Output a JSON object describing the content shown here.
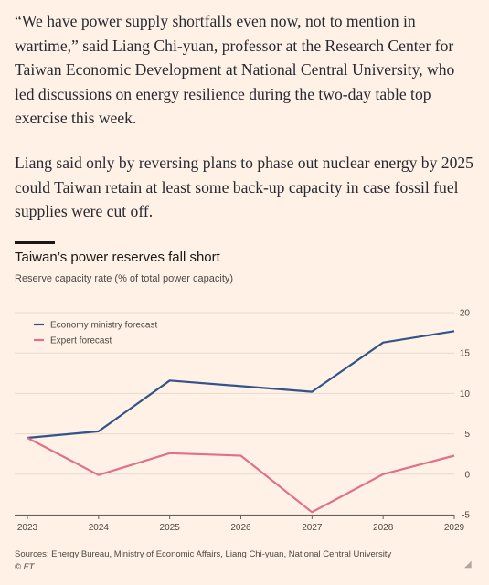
{
  "article": {
    "paragraph_1": "“We have power supply shortfalls even now, not to mention in wartime,” said Liang Chi-yuan, professor at the Research Center for Taiwan Economic Development at National Central University, who led discussions on energy resilience during the two-day table top exercise this week.",
    "paragraph_2": "Liang said only by reversing plans to phase out nuclear energy by 2025 could Taiwan retain at least some back-up capacity in case fossil fuel supplies were cut off."
  },
  "chart_data": {
    "type": "line",
    "title": "Taiwan’s power reserves fall short",
    "subtitle": "Reserve capacity rate (% of total power capacity)",
    "x": [
      "2023",
      "2024",
      "2025",
      "2026",
      "2027",
      "2028",
      "2029"
    ],
    "ylim": [
      -5,
      20
    ],
    "yticks": [
      "20",
      "15",
      "10",
      "5",
      "0",
      "-5"
    ],
    "grid": true,
    "legend_position": "top-left",
    "series": [
      {
        "name": "Economy ministry forecast",
        "color": "#33548b",
        "values": [
          4.5,
          5.3,
          11.6,
          10.9,
          10.2,
          16.3,
          17.7
        ]
      },
      {
        "name": "Expert forecast",
        "color": "#e0708b",
        "values": [
          4.5,
          -0.1,
          2.6,
          2.3,
          -4.7,
          0.0,
          2.3
        ]
      }
    ],
    "source": "Sources: Energy Bureau, Ministry of Economic Affairs, Liang Chi-yuan, National Central University",
    "credit": "© FT"
  }
}
